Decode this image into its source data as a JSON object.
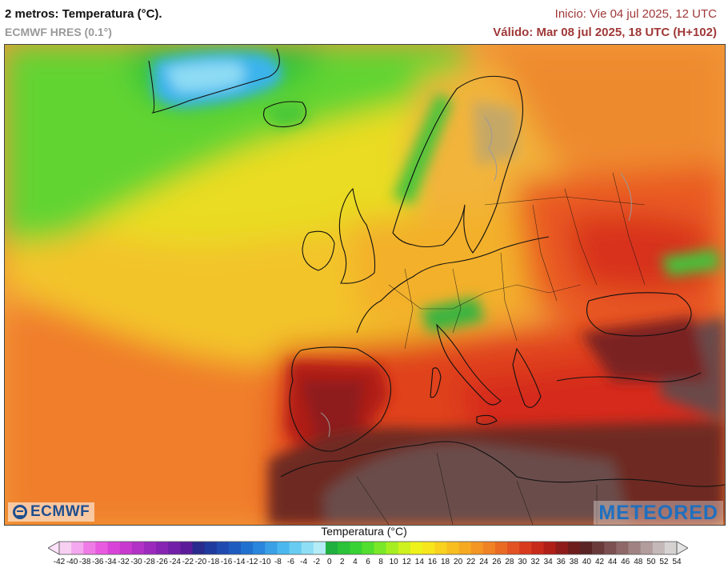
{
  "header": {
    "title": "2 metros: Temperatura (°C).",
    "subtitle": "ECMWF HRES (0.1°)",
    "init": "Inicio: Vie 04 jul 2025, 12 UTC",
    "valid": "Válido: Mar 08 jul 2025, 18 UTC (H+102)"
  },
  "logos": {
    "left": "ECMWF",
    "right": "METEORED"
  },
  "legend": {
    "title": "Temperatura (°C)",
    "ticks": [
      "-42",
      "-40",
      "-38",
      "-36",
      "-34",
      "-32",
      "-30",
      "-28",
      "-26",
      "-24",
      "-22",
      "-20",
      "-18",
      "-16",
      "-14",
      "-12",
      "-10",
      "-8",
      "-6",
      "-4",
      "-2",
      "0",
      "2",
      "4",
      "6",
      "8",
      "10",
      "12",
      "14",
      "16",
      "18",
      "20",
      "22",
      "24",
      "26",
      "28",
      "30",
      "32",
      "34",
      "36",
      "38",
      "40",
      "42",
      "44",
      "46",
      "48",
      "50",
      "52",
      "54"
    ],
    "colors": [
      "#f7d0f2",
      "#f4a8ee",
      "#ef7ce6",
      "#e85be0",
      "#d944d8",
      "#c83acf",
      "#b232c6",
      "#9c2bbd",
      "#8724b3",
      "#7220a8",
      "#5c1c9a",
      "#2a2a8c",
      "#1f3a9f",
      "#1f4ab0",
      "#1f5cc0",
      "#2170d0",
      "#2a86dc",
      "#3aa0e6",
      "#4ab8ee",
      "#68ccf2",
      "#8edef5",
      "#b4ecf6",
      "#20b040",
      "#2cc23a",
      "#38d234",
      "#52de2e",
      "#7ae828",
      "#a6ee22",
      "#cef21e",
      "#eef21a",
      "#f8e61c",
      "#f8d21e",
      "#f8be20",
      "#f6aa22",
      "#f49624",
      "#f08226",
      "#ea6a24",
      "#e25222",
      "#d83a1e",
      "#c82a1a",
      "#b01e18",
      "#8e1c1a",
      "#6e1c1c",
      "#5a2424",
      "#6a3a3a",
      "#7c5050",
      "#8e6868",
      "#a08282",
      "#b29c9c",
      "#c4b8b8",
      "#d6d2d2"
    ]
  },
  "map": {
    "region": "Europe / North Atlantic"
  }
}
